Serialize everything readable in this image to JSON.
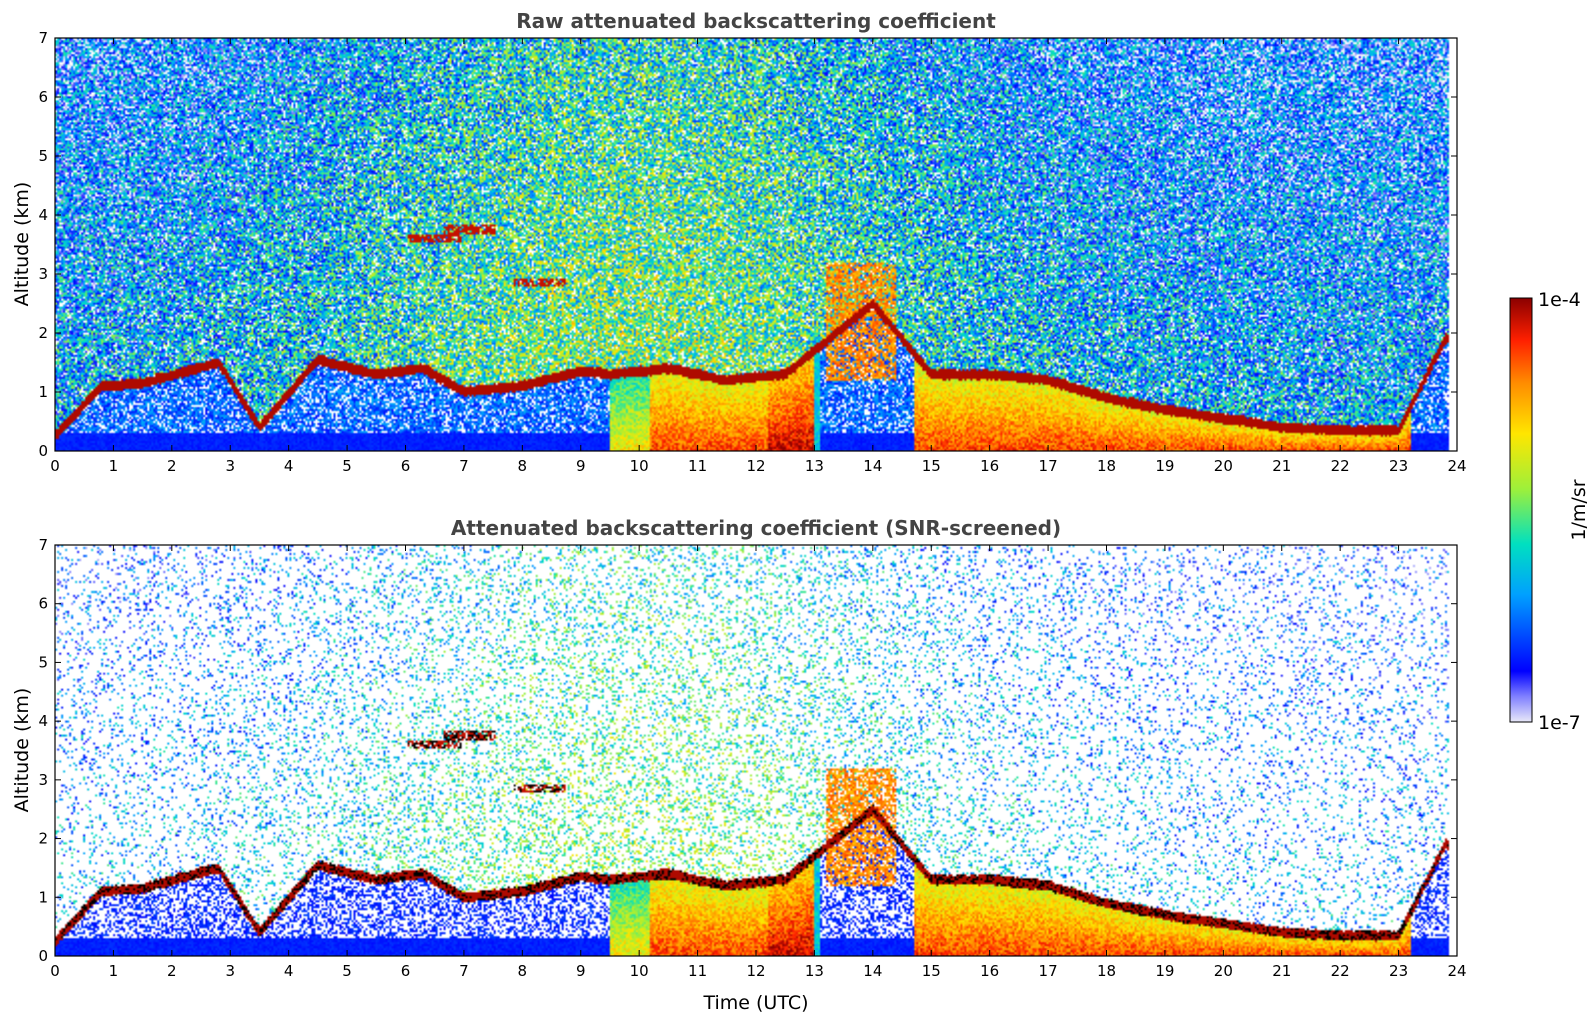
{
  "figure": {
    "xlabel": "Time (UTC)",
    "colorbar": {
      "label": "1/m/sr",
      "max_label": "1e-4",
      "min_label": "1e-7",
      "vmin": 1e-07,
      "vmax": 0.0001,
      "scale": "log",
      "colormap": "jet",
      "colors": [
        "#e8e8f8",
        "#0000ff",
        "#00a0ff",
        "#00e0c0",
        "#9ef03a",
        "#ffe600",
        "#ff8c00",
        "#ff2000",
        "#8b0000"
      ]
    }
  },
  "chart_data": [
    {
      "type": "heatmap",
      "title": "Raw attenuated backscattering coefficient",
      "xlabel": "",
      "ylabel": "Altitude (km)",
      "xlim": [
        0,
        24
      ],
      "ylim": [
        0,
        7
      ],
      "xticks": [
        "0",
        "1",
        "2",
        "3",
        "4",
        "5",
        "6",
        "7",
        "8",
        "9",
        "10",
        "11",
        "12",
        "13",
        "14",
        "15",
        "16",
        "17",
        "18",
        "19",
        "20",
        "21",
        "22",
        "23",
        "24"
      ],
      "yticks": [
        "0",
        "1",
        "2",
        "3",
        "4",
        "5",
        "6",
        "7"
      ],
      "screened": false,
      "cloud_base_km": [
        [
          0,
          0.25
        ],
        [
          0.8,
          1.1
        ],
        [
          1.5,
          1.15
        ],
        [
          2.8,
          1.5
        ],
        [
          3.5,
          0.4
        ],
        [
          4.5,
          1.55
        ],
        [
          5.5,
          1.3
        ],
        [
          6.3,
          1.4
        ],
        [
          7,
          1.0
        ],
        [
          8,
          1.1
        ],
        [
          9,
          1.35
        ],
        [
          9.5,
          1.3
        ],
        [
          10.5,
          1.4
        ],
        [
          11.5,
          1.2
        ],
        [
          12.5,
          1.3
        ],
        [
          14,
          2.5
        ],
        [
          15,
          1.3
        ],
        [
          16,
          1.3
        ],
        [
          17,
          1.2
        ],
        [
          18,
          0.9
        ],
        [
          19,
          0.7
        ],
        [
          20,
          0.55
        ],
        [
          21,
          0.4
        ],
        [
          22,
          0.35
        ],
        [
          23,
          0.35
        ],
        [
          23.8,
          1.9
        ]
      ],
      "elevated_layers_km": [
        [
          7.1,
          3.75
        ],
        [
          8.3,
          2.85
        ],
        [
          6.5,
          3.6
        ]
      ]
    },
    {
      "type": "heatmap",
      "title": "Attenuated backscattering coefficient (SNR-screened)",
      "xlabel": "Time (UTC)",
      "ylabel": "Altitude (km)",
      "xlim": [
        0,
        24
      ],
      "ylim": [
        0,
        7
      ],
      "xticks": [
        "0",
        "1",
        "2",
        "3",
        "4",
        "5",
        "6",
        "7",
        "8",
        "9",
        "10",
        "11",
        "12",
        "13",
        "14",
        "15",
        "16",
        "17",
        "18",
        "19",
        "20",
        "21",
        "22",
        "23",
        "24"
      ],
      "yticks": [
        "0",
        "1",
        "2",
        "3",
        "4",
        "5",
        "6",
        "7"
      ],
      "screened": true
    }
  ]
}
